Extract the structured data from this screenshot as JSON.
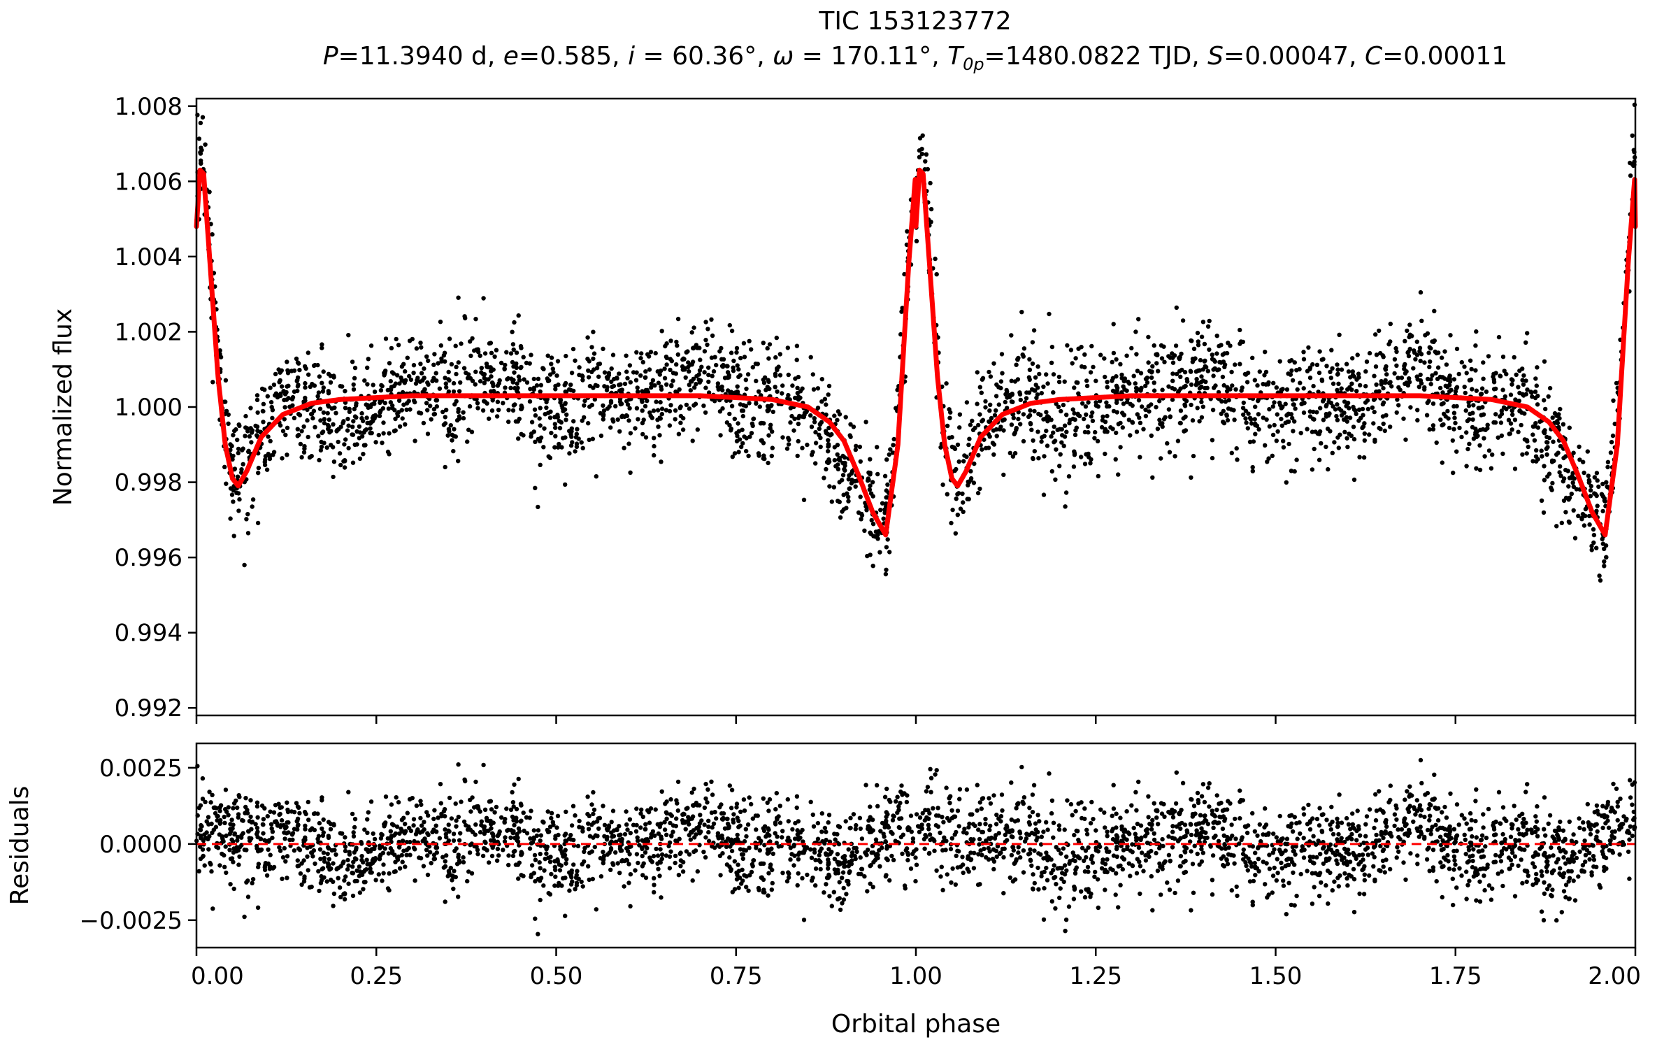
{
  "chart_data": [
    {
      "panel": "light-curve",
      "type": "scatter",
      "title": "TIC 153123772",
      "subtitle_parts": [
        {
          "t": "P",
          "style": "italic"
        },
        {
          "t": "=11.3940 d, "
        },
        {
          "t": "e",
          "style": "italic"
        },
        {
          "t": "=0.585, "
        },
        {
          "t": "i",
          "style": "italic"
        },
        {
          "t": " = 60.36°, "
        },
        {
          "t": "ω",
          "style": "italic"
        },
        {
          "t": " = 170.11°, "
        },
        {
          "t": "T",
          "style": "italic"
        },
        {
          "t": "0p",
          "style": "italic-sub"
        },
        {
          "t": "=1480.0822 TJD, "
        },
        {
          "t": "S",
          "style": "italic"
        },
        {
          "t": "=0.00047, "
        },
        {
          "t": "C",
          "style": "italic"
        },
        {
          "t": "=0.00011"
        }
      ],
      "xlabel": "",
      "ylabel": "Normalized flux",
      "xlim": [
        0.0,
        2.0
      ],
      "ylim": [
        0.9918,
        1.0082
      ],
      "yticks": [
        0.992,
        0.994,
        0.996,
        0.998,
        1.0,
        1.002,
        1.004,
        1.006,
        1.008
      ],
      "ytick_labels": [
        "0.992",
        "0.994",
        "0.996",
        "0.998",
        "1.000",
        "1.002",
        "1.004",
        "1.006",
        "1.008"
      ],
      "xticks": [
        0.0,
        0.25,
        0.5,
        0.75,
        1.0,
        1.25,
        1.5,
        1.75,
        2.0
      ],
      "series": [
        {
          "name": "observed flux",
          "kind": "scatter",
          "color": "#000000",
          "n_points": 3200,
          "scatter_sigma": 0.0009
        },
        {
          "name": "model",
          "kind": "line",
          "color": "#ff0000",
          "x": [
            0.0,
            0.005,
            0.01,
            0.02,
            0.03,
            0.04,
            0.05,
            0.058,
            0.07,
            0.09,
            0.12,
            0.16,
            0.2,
            0.3,
            0.5,
            0.7,
            0.8,
            0.85,
            0.88,
            0.9,
            0.92,
            0.94,
            0.958,
            0.975,
            0.99,
            1.0,
            1.005,
            1.01,
            1.02,
            1.03,
            1.04,
            1.05,
            1.058,
            1.07,
            1.09,
            1.12,
            1.16,
            1.2,
            1.3,
            1.5,
            1.7,
            1.8,
            1.85,
            1.88,
            1.9,
            1.92,
            1.94,
            1.958,
            1.975,
            1.99
          ],
          "y": [
            1.0048,
            1.0063,
            1.0062,
            1.0035,
            1.0008,
            0.999,
            0.9981,
            0.9979,
            0.9983,
            0.9992,
            0.9998,
            1.0001,
            1.0002,
            1.0003,
            1.0003,
            1.0003,
            1.0002,
            1.0,
            0.9996,
            0.9991,
            0.9982,
            0.9972,
            0.9966,
            0.999,
            1.0038,
            1.0063,
            1.0063,
            1.0058,
            1.003,
            1.0005,
            0.9988,
            0.998,
            0.9979,
            0.9983,
            0.9992,
            0.9998,
            1.0001,
            1.0002,
            1.0003,
            1.0003,
            1.0003,
            1.0002,
            1.0,
            0.9996,
            0.9991,
            0.9982,
            0.9972,
            0.9966,
            0.999,
            1.0036
          ]
        }
      ]
    },
    {
      "panel": "residuals",
      "type": "scatter",
      "xlabel": "Orbital phase",
      "ylabel": "Residuals",
      "xlim": [
        0.0,
        2.0
      ],
      "ylim": [
        -0.0034,
        0.0033
      ],
      "xticks": [
        0.0,
        0.25,
        0.5,
        0.75,
        1.0,
        1.25,
        1.5,
        1.75,
        2.0
      ],
      "xtick_labels": [
        "0.00",
        "0.25",
        "0.50",
        "0.75",
        "1.00",
        "1.25",
        "1.50",
        "1.75",
        "2.00"
      ],
      "yticks": [
        -0.0025,
        0.0,
        0.0025
      ],
      "ytick_labels": [
        "−0.0025",
        "0.0000",
        "0.0025"
      ],
      "reference_line": {
        "y": 0.0,
        "style": "dashed",
        "color": "#ff0000"
      },
      "series": [
        {
          "name": "residuals",
          "kind": "scatter",
          "color": "#000000",
          "n_points": 3200,
          "scatter_sigma": 0.0009
        }
      ]
    }
  ]
}
